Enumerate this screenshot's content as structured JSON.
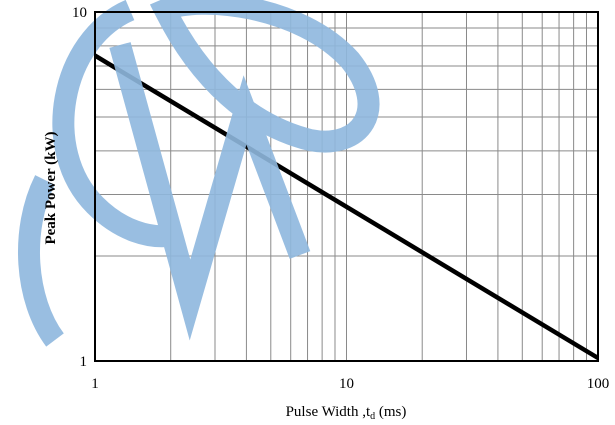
{
  "chart_data": {
    "type": "line",
    "x_scale": "log",
    "y_scale": "log",
    "xlim": [
      1,
      100
    ],
    "ylim": [
      1,
      10
    ],
    "grid": true,
    "x_tick_labels": [
      "1",
      "10",
      "100"
    ],
    "y_tick_labels": [
      "1",
      "10"
    ],
    "xlabel": "Pulse Width ,t",
    "xlabel_subscript": "d",
    "xlabel_unit": " (ms)",
    "ylabel": "Peak Power  (kW)",
    "series": [
      {
        "x": [
          1,
          100
        ],
        "y": [
          7.5,
          1.02
        ],
        "color": "#000000"
      }
    ]
  },
  "watermark": {
    "text": "CWO",
    "color": "#8fb8de"
  }
}
